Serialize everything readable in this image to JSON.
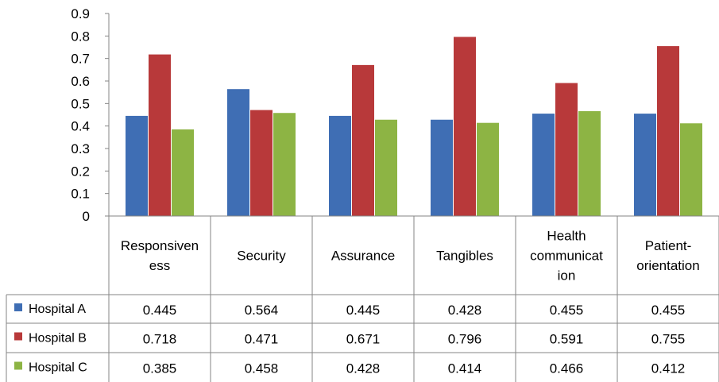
{
  "chart_data": {
    "type": "bar",
    "title": "",
    "xlabel": "",
    "ylabel": "",
    "ylim": [
      0,
      0.9
    ],
    "yticks": [
      "0",
      "0.1",
      "0.2",
      "0.3",
      "0.4",
      "0.5",
      "0.6",
      "0.7",
      "0.8",
      "0.9"
    ],
    "grid": false,
    "legend": "data-table-left",
    "categories": [
      [
        "Responsiven",
        "ess"
      ],
      [
        "Security"
      ],
      [
        "Assurance"
      ],
      [
        "Tangibles"
      ],
      [
        "Health",
        "communicat",
        "ion"
      ],
      [
        "Patient-",
        "orientation"
      ]
    ],
    "series": [
      {
        "name": "Hospital A",
        "color": "#3f6eb4",
        "values": [
          0.445,
          0.564,
          0.445,
          0.428,
          0.455,
          0.455
        ],
        "labels": [
          "0.445",
          "0.564",
          "0.445",
          "0.428",
          "0.455",
          "0.455"
        ]
      },
      {
        "name": "Hospital B",
        "color": "#b8393a",
        "values": [
          0.718,
          0.471,
          0.671,
          0.796,
          0.591,
          0.755
        ],
        "labels": [
          "0.718",
          "0.471",
          "0.671",
          "0.796",
          "0.591",
          "0.755"
        ]
      },
      {
        "name": "Hospital C",
        "color": "#8db444",
        "values": [
          0.385,
          0.458,
          0.428,
          0.414,
          0.466,
          0.412
        ],
        "labels": [
          "0.385",
          "0.458",
          "0.428",
          "0.414",
          "0.466",
          "0.412"
        ]
      }
    ]
  }
}
